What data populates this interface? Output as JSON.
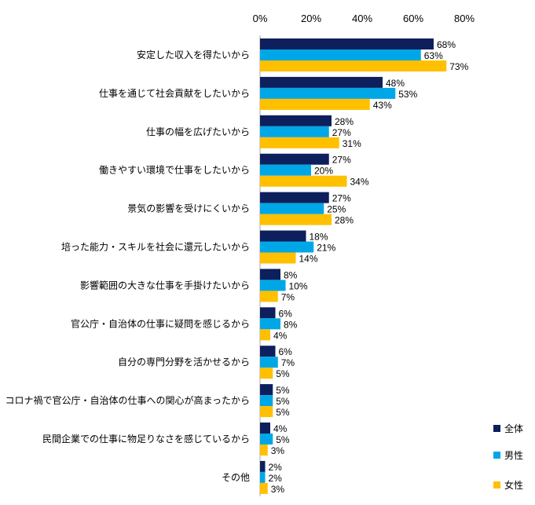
{
  "chart_data": {
    "type": "bar",
    "orientation": "horizontal",
    "title": "",
    "xlabel": "",
    "ylabel": "",
    "xlim": [
      0,
      80
    ],
    "ticks": [
      "0%",
      "20%",
      "40%",
      "60%",
      "80%"
    ],
    "tick_values": [
      0,
      20,
      40,
      60,
      80
    ],
    "value_suffix": "%",
    "grid": false,
    "legend_position": "bottom-right",
    "categories": [
      "安定した収入を得たいから",
      "仕事を通じて社会貢献をしたいから",
      "仕事の幅を広げたいから",
      "働きやすい環境で仕事をしたいから",
      "景気の影響を受けにくいから",
      "培った能力・スキルを社会に還元したいから",
      "影響範囲の大きな仕事を手掛けたいから",
      "官公庁・自治体の仕事に疑問を感じるから",
      "自分の専門分野を活かせるから",
      "コロナ禍で官公庁・自治体の仕事への関心が高まったから",
      "民間企業での仕事に物足りなさを感じているから",
      "その他"
    ],
    "series": [
      {
        "name": "全体",
        "color": "#0d1f5c",
        "values": [
          68,
          48,
          28,
          27,
          27,
          18,
          8,
          6,
          6,
          5,
          4,
          2
        ]
      },
      {
        "name": "男性",
        "color": "#00a7e6",
        "values": [
          63,
          53,
          27,
          20,
          25,
          21,
          10,
          8,
          7,
          5,
          5,
          2
        ]
      },
      {
        "name": "女性",
        "color": "#ffc000",
        "values": [
          73,
          43,
          31,
          34,
          28,
          14,
          7,
          4,
          5,
          5,
          3,
          3
        ]
      }
    ]
  }
}
